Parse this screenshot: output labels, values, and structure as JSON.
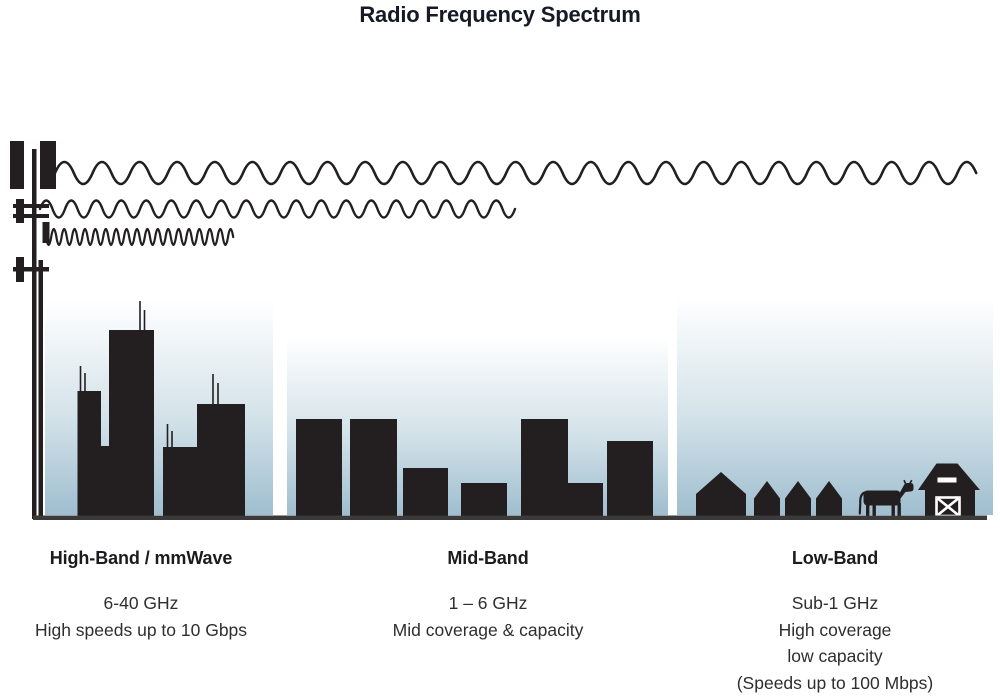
{
  "title": "Radio Frequency Spectrum",
  "bands": [
    {
      "id": "high-band",
      "heading": "High-Band / mmWave",
      "lines": [
        "6-40 GHz",
        "High speeds up to 10 Gbps"
      ],
      "scene": "city-skyline-with-antennas-icon",
      "wave": "short-wavelength-short-reach"
    },
    {
      "id": "mid-band",
      "heading": "Mid-Band",
      "lines": [
        "1 – 6 GHz",
        "Mid coverage & capacity"
      ],
      "scene": "town-buildings-icon",
      "wave": "medium-wavelength-medium-reach"
    },
    {
      "id": "low-band",
      "heading": "Low-Band",
      "lines": [
        "Sub-1 GHz",
        "High coverage",
        "low capacity",
        "(Speeds up to 100 Mbps)"
      ],
      "scene": "rural-houses-cow-barn-icon",
      "wave": "long-wavelength-full-reach"
    }
  ],
  "graphics": {
    "transmitter": "cell-tower-icon",
    "ground": "ground-line"
  },
  "colors": {
    "silhouette": "#231f20",
    "ground": "#3a3a3a",
    "title_text": "#151a26",
    "body_text": "#2e2e30",
    "sky_mid": "#d3e2e9",
    "sky_gradient_bottom": "#9fbecf"
  }
}
